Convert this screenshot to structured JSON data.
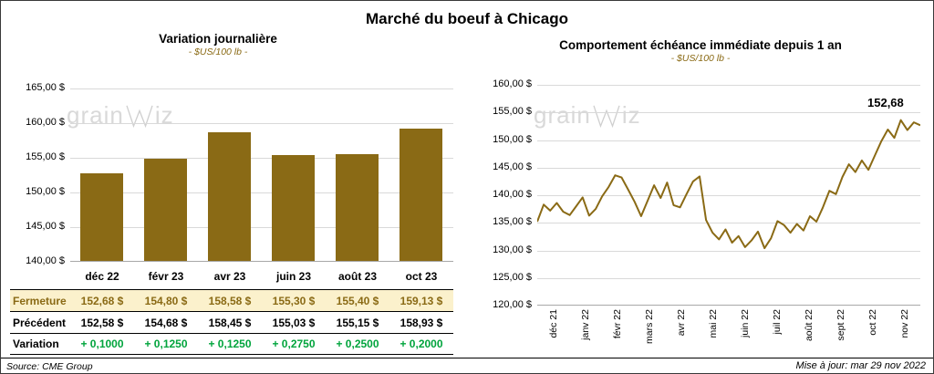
{
  "title": "Marché du boeuf à Chicago",
  "colors": {
    "gold": "#8A6A15",
    "cream": "#FBF1CC",
    "green": "#00A43C",
    "grid": "#D9D9D9",
    "watermark": "#D9D9D9"
  },
  "watermark": {
    "pre": "grain",
    "post": "iz"
  },
  "footer": {
    "source": "Source: CME Group",
    "updated": "Mise à jour: mar 29 nov 2022"
  },
  "chart_data": [
    {
      "type": "bar",
      "title": "Variation journalière",
      "subtitle": "- $US/100 lb -",
      "categories": [
        "déc 22",
        "févr 23",
        "avr 23",
        "juin 23",
        "août 23",
        "oct 23"
      ],
      "values": [
        152.68,
        154.8,
        158.58,
        155.3,
        155.4,
        159.13
      ],
      "ylim": [
        140,
        165
      ],
      "ytick_step": 5,
      "yticks": [
        "165,00 $",
        "160,00 $",
        "155,00 $",
        "150,00 $",
        "145,00 $",
        "140,00 $"
      ],
      "table": {
        "rows": [
          {
            "label": "Fermeture",
            "values": [
              "152,68 $",
              "154,80 $",
              "158,58 $",
              "155,30 $",
              "155,40 $",
              "159,13 $"
            ]
          },
          {
            "label": "Précédent",
            "values": [
              "152,58 $",
              "154,68 $",
              "158,45 $",
              "155,03 $",
              "155,15 $",
              "158,93 $"
            ]
          },
          {
            "label": "Variation",
            "values": [
              "+ 0,1000",
              "+ 0,1250",
              "+ 0,1250",
              "+ 0,2750",
              "+ 0,2500",
              "+ 0,2000"
            ]
          }
        ]
      }
    },
    {
      "type": "line",
      "title": "Comportement échéance immédiate depuis 1 an",
      "subtitle": "- $US/100 lb -",
      "x_labels": [
        "déc 21",
        "janv 22",
        "févr 22",
        "mars 22",
        "avr 22",
        "mai 22",
        "juin 22",
        "juil 22",
        "août 22",
        "sept 22",
        "oct 22",
        "nov 22"
      ],
      "ylim": [
        120,
        160
      ],
      "ytick_step": 5,
      "yticks": [
        "160,00 $",
        "155,00 $",
        "150,00 $",
        "145,00 $",
        "140,00 $",
        "135,00 $",
        "130,00 $",
        "125,00 $",
        "120,00 $"
      ],
      "values": [
        135.2,
        138.3,
        137.2,
        138.6,
        137.0,
        136.4,
        138.0,
        139.6,
        136.3,
        137.5,
        139.8,
        141.5,
        143.6,
        143.2,
        141.0,
        138.8,
        136.2,
        139.0,
        141.8,
        139.5,
        142.3,
        138.2,
        137.8,
        140.2,
        142.5,
        143.4,
        135.5,
        133.2,
        132.0,
        133.8,
        131.4,
        132.6,
        130.6,
        131.8,
        133.4,
        130.4,
        132.2,
        135.3,
        134.6,
        133.2,
        134.8,
        133.6,
        136.2,
        135.2,
        137.8,
        140.8,
        140.2,
        143.3,
        145.6,
        144.2,
        146.3,
        144.6,
        147.2,
        149.8,
        151.9,
        150.4,
        153.6,
        151.8,
        153.2,
        152.68
      ],
      "annotation": "152,68"
    }
  ]
}
